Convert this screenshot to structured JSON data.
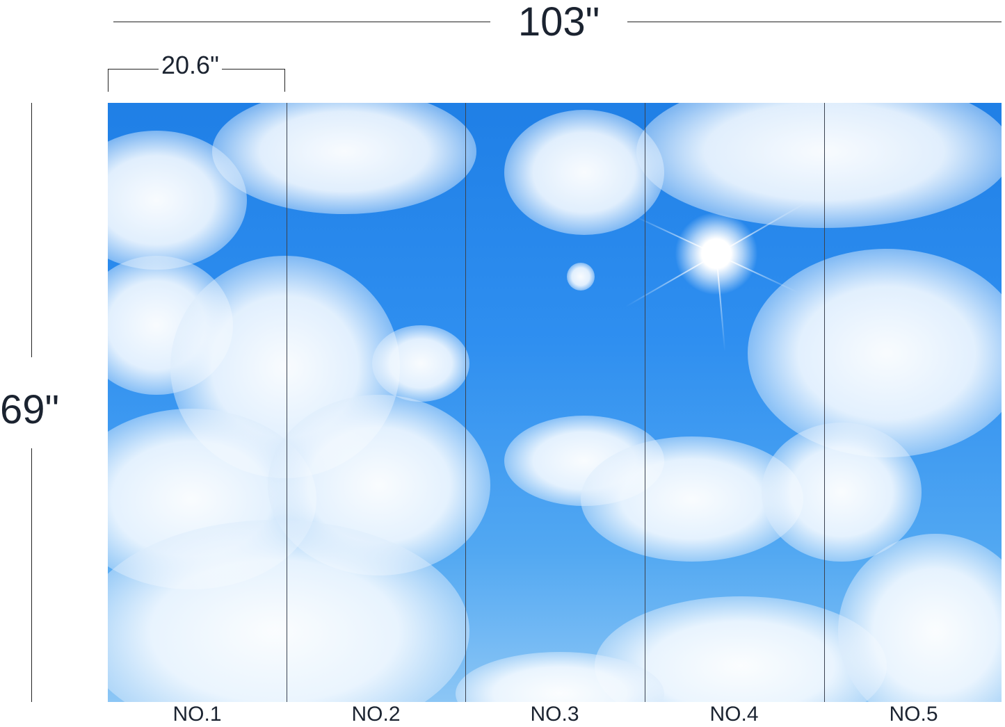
{
  "dimensions": {
    "total_width": "103\"",
    "panel_width": "20.6\"",
    "height": "69\""
  },
  "image": {
    "subject": "sky-clouds-sun",
    "colors": {
      "sky": "#2f8ff0",
      "cloud": "#ffffff",
      "text": "#1b2330"
    }
  },
  "panels": [
    {
      "label": "NO.1"
    },
    {
      "label": "NO.2"
    },
    {
      "label": "NO.3"
    },
    {
      "label": "NO.4"
    },
    {
      "label": "NO.5"
    }
  ]
}
